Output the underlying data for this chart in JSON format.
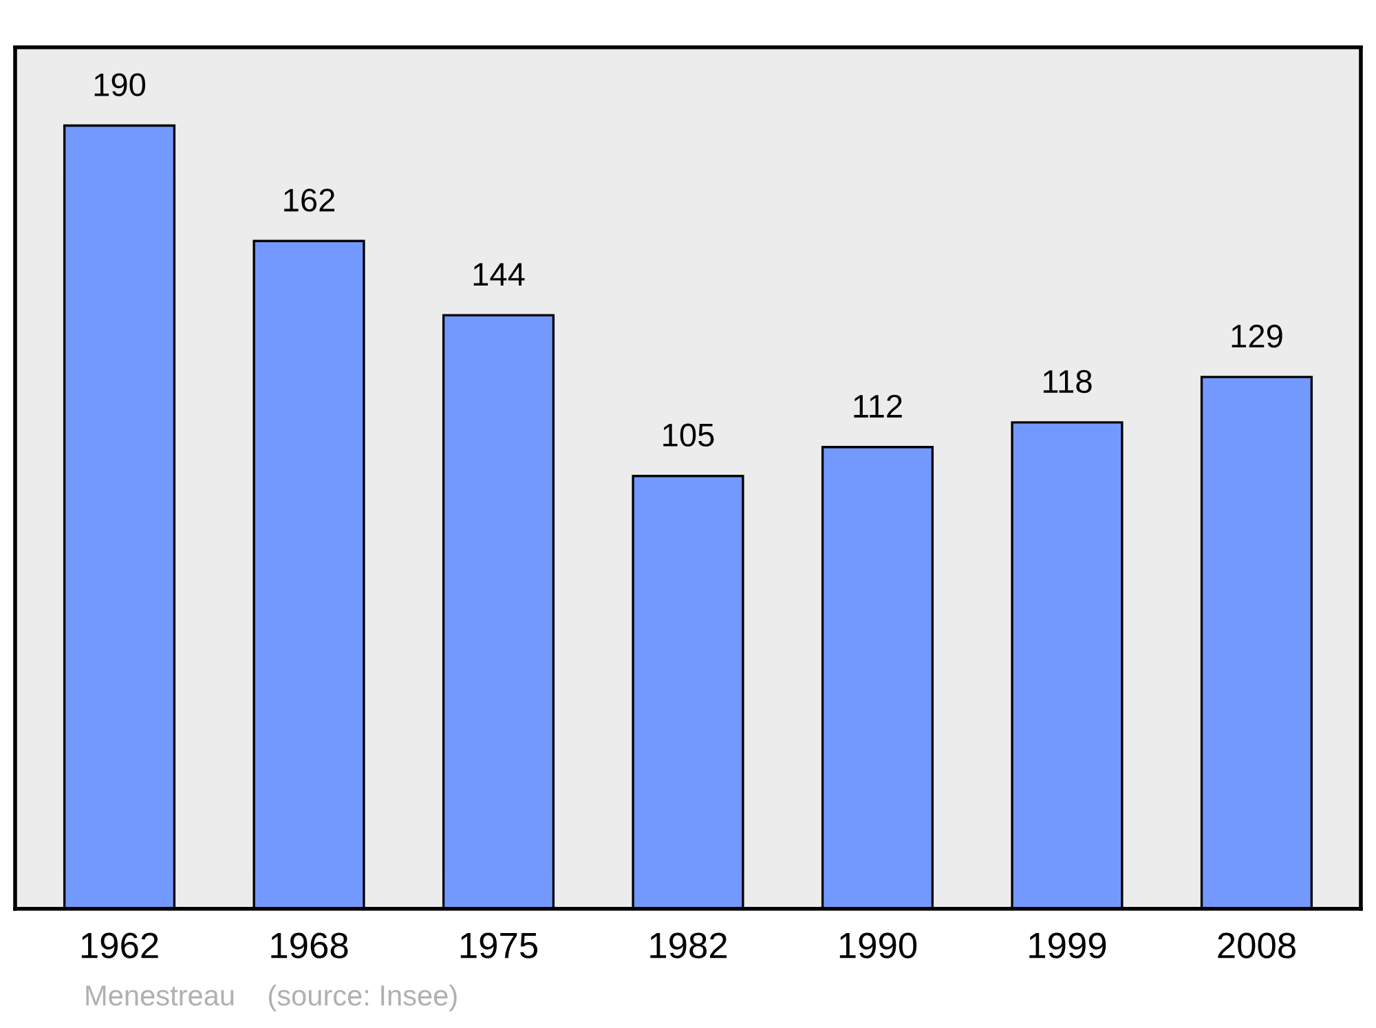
{
  "chart_data": {
    "type": "bar",
    "categories": [
      "1962",
      "1968",
      "1975",
      "1982",
      "1990",
      "1999",
      "2008"
    ],
    "values": [
      190,
      162,
      144,
      105,
      112,
      118,
      129
    ],
    "color": "#7399ff",
    "data_labels": true,
    "tick_labels": "x",
    "annotations": [
      "Menestreau    (source: Insee)"
    ]
  }
}
